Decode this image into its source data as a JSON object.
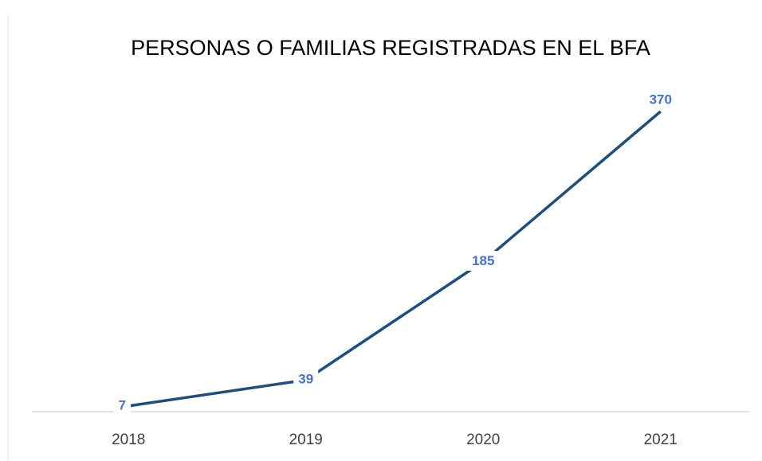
{
  "chart_data": {
    "type": "line",
    "title": "PERSONAS O FAMILIAS REGISTRADAS EN EL BFA",
    "categories": [
      "2018",
      "2019",
      "2020",
      "2021"
    ],
    "series": [
      {
        "color": "#1f4e79",
        "values": [
          7,
          39,
          185,
          370
        ]
      }
    ],
    "label_color": "#4472c4"
  }
}
